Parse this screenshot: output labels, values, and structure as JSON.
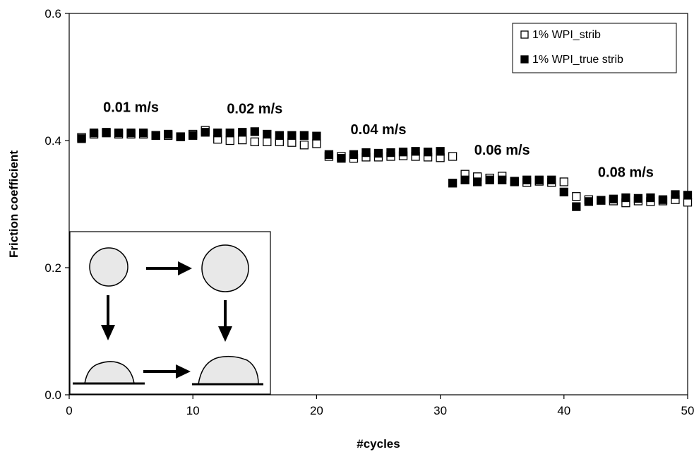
{
  "chart_data": {
    "type": "scatter",
    "title": "",
    "xlabel": "#cycles",
    "ylabel": "Friction coefficient",
    "xlim": [
      0,
      50
    ],
    "ylim": [
      0,
      0.6
    ],
    "x_ticks": [
      "0",
      "10",
      "20",
      "30",
      "40",
      "50"
    ],
    "y_ticks": [
      "0.0",
      "0.2",
      "0.4",
      "0.6"
    ],
    "grid": false,
    "legend_position": "top-right",
    "series": [
      {
        "name": "1% WPI_strib",
        "marker": "open-square",
        "color": "#000000",
        "x": [
          1,
          2,
          3,
          4,
          5,
          6,
          7,
          8,
          9,
          10,
          11,
          12,
          13,
          14,
          15,
          16,
          17,
          18,
          19,
          20,
          21,
          22,
          23,
          24,
          25,
          26,
          27,
          28,
          29,
          30,
          31,
          32,
          33,
          34,
          35,
          36,
          37,
          38,
          39,
          40,
          41,
          42,
          43,
          44,
          45,
          46,
          47,
          48,
          49,
          50
        ],
        "values": [
          0.405,
          0.41,
          0.412,
          0.41,
          0.41,
          0.41,
          0.408,
          0.408,
          0.406,
          0.41,
          0.416,
          0.402,
          0.4,
          0.401,
          0.398,
          0.398,
          0.398,
          0.397,
          0.393,
          0.395,
          0.375,
          0.375,
          0.372,
          0.374,
          0.374,
          0.375,
          0.376,
          0.375,
          0.374,
          0.373,
          0.375,
          0.347,
          0.343,
          0.341,
          0.344,
          0.336,
          0.334,
          0.336,
          0.334,
          0.335,
          0.312,
          0.307,
          0.306,
          0.305,
          0.302,
          0.305,
          0.304,
          0.305,
          0.307,
          0.303
        ]
      },
      {
        "name": "1% WPI_true strib",
        "marker": "filled-square",
        "color": "#000000",
        "x": [
          1,
          2,
          3,
          4,
          5,
          6,
          7,
          8,
          9,
          10,
          11,
          12,
          13,
          14,
          15,
          16,
          17,
          18,
          19,
          20,
          21,
          22,
          23,
          24,
          25,
          26,
          27,
          28,
          29,
          30,
          31,
          32,
          33,
          34,
          35,
          36,
          37,
          38,
          39,
          40,
          41,
          42,
          43,
          44,
          45,
          46,
          47,
          48,
          49,
          50
        ],
        "values": [
          0.403,
          0.412,
          0.413,
          0.412,
          0.412,
          0.412,
          0.408,
          0.41,
          0.406,
          0.408,
          0.413,
          0.412,
          0.412,
          0.413,
          0.414,
          0.41,
          0.408,
          0.408,
          0.408,
          0.407,
          0.378,
          0.372,
          0.378,
          0.381,
          0.38,
          0.381,
          0.382,
          0.383,
          0.382,
          0.383,
          0.333,
          0.338,
          0.335,
          0.338,
          0.338,
          0.335,
          0.338,
          0.338,
          0.338,
          0.319,
          0.296,
          0.304,
          0.306,
          0.308,
          0.31,
          0.309,
          0.31,
          0.307,
          0.315,
          0.314
        ]
      }
    ],
    "annotations": [
      {
        "text": "0.01 m/s",
        "x": 5,
        "y": 0.445
      },
      {
        "text": "0.02 m/s",
        "x": 15,
        "y": 0.443
      },
      {
        "text": "0.04 m/s",
        "x": 25,
        "y": 0.41
      },
      {
        "text": "0.06 m/s",
        "x": 35,
        "y": 0.378
      },
      {
        "text": "0.08 m/s",
        "x": 45,
        "y": 0.343
      }
    ],
    "inset": {
      "description_words": "schematic"
    }
  }
}
